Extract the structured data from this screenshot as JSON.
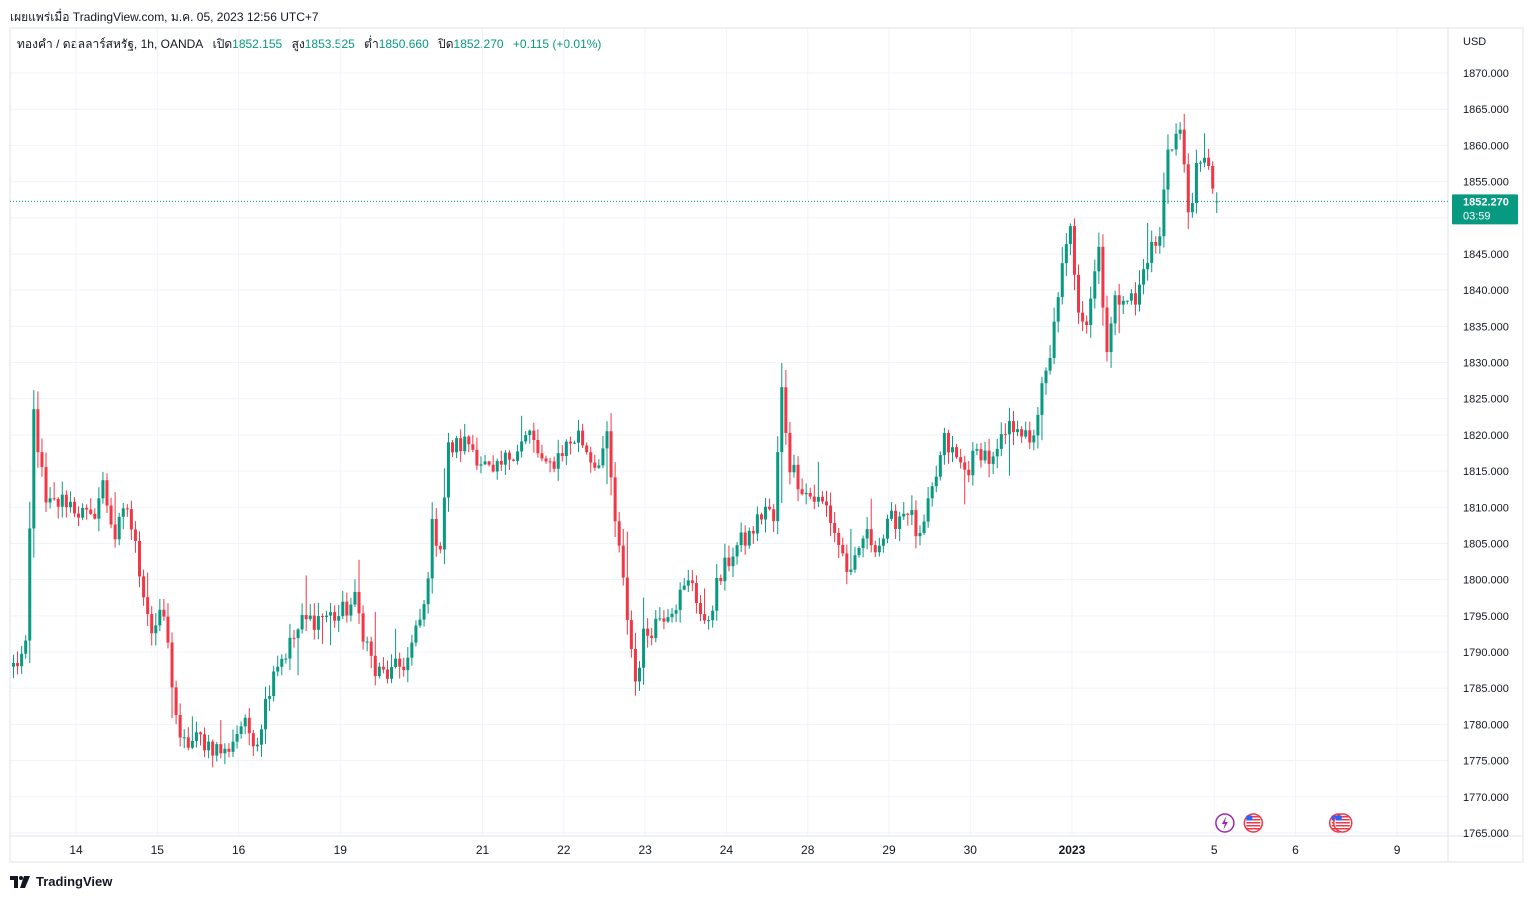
{
  "header": {
    "published": "เผยแพร่เมื่อ TradingView.com, ม.ค. 05, 2023 12:56 UTC+7"
  },
  "legend": {
    "symbol": "ทองคำ / ดอลลาร์สหรัฐ, 1h, OANDA",
    "open_label": "เปิด",
    "open": "1852.155",
    "high_label": "สูง",
    "high": "1853.525",
    "low_label": "ต่ำ",
    "low": "1850.660",
    "close_label": "ปิด",
    "close": "1852.270",
    "change": "+0.115 (+0.01%)"
  },
  "price_tag": {
    "price": "1852.270",
    "countdown": "03:59"
  },
  "footer": {
    "brand": "TradingView"
  },
  "colors": {
    "up": "#089981",
    "down": "#f23645",
    "grid": "#f0f3fa",
    "border": "#e0e3eb",
    "accent": "#089981"
  },
  "chart_data": {
    "type": "candlestick",
    "currency_label": "USD",
    "ylim": [
      1763,
      1875
    ],
    "y_ticks": [
      "1765.000",
      "1770.000",
      "1775.000",
      "1780.000",
      "1785.000",
      "1790.000",
      "1795.000",
      "1800.000",
      "1805.000",
      "1810.000",
      "1815.000",
      "1820.000",
      "1825.000",
      "1830.000",
      "1835.000",
      "1840.000",
      "1845.000",
      "1850.000",
      "1855.000",
      "1860.000",
      "1865.000",
      "1870.000"
    ],
    "x_ticks": [
      {
        "label": "14",
        "bar": 8
      },
      {
        "label": "15",
        "bar": 28
      },
      {
        "label": "16",
        "bar": 48
      },
      {
        "label": "19",
        "bar": 73
      },
      {
        "label": "21",
        "bar": 108
      },
      {
        "label": "22",
        "bar": 128
      },
      {
        "label": "23",
        "bar": 148
      },
      {
        "label": "24",
        "bar": 168
      },
      {
        "label": "28",
        "bar": 188
      },
      {
        "label": "29",
        "bar": 208
      },
      {
        "label": "30",
        "bar": 228
      },
      {
        "label": "2023",
        "bar": 253,
        "bold": true
      },
      {
        "label": "5",
        "bar": 288
      },
      {
        "label": "6",
        "bar": 308
      },
      {
        "label": "9",
        "bar": 333
      }
    ],
    "events": [
      {
        "icon": "lightning-event-icon",
        "bar": 298
      },
      {
        "icon": "us-flag-event-icon",
        "bar": 305
      },
      {
        "icon": "us-flag-event-icon",
        "bar": 326
      },
      {
        "icon": "us-flag-event-icon",
        "bar": 327
      }
    ],
    "anchors": [
      [
        0,
        1788
      ],
      [
        3,
        1790
      ],
      [
        5,
        1823
      ],
      [
        8,
        1810
      ],
      [
        13,
        1811
      ],
      [
        19,
        1808
      ],
      [
        22,
        1813
      ],
      [
        25,
        1806
      ],
      [
        28,
        1810
      ],
      [
        34,
        1793
      ],
      [
        37,
        1795
      ],
      [
        41,
        1777
      ],
      [
        46,
        1778
      ],
      [
        52,
        1776
      ],
      [
        56,
        1780
      ],
      [
        60,
        1778
      ],
      [
        64,
        1788
      ],
      [
        67,
        1790
      ],
      [
        71,
        1794
      ],
      [
        76,
        1795
      ],
      [
        80,
        1795
      ],
      [
        84,
        1797
      ],
      [
        89,
        1787
      ],
      [
        93,
        1787
      ],
      [
        97,
        1789
      ],
      [
        101,
        1796
      ],
      [
        103,
        1807
      ],
      [
        105,
        1805
      ],
      [
        107,
        1818
      ],
      [
        112,
        1819
      ],
      [
        118,
        1814
      ],
      [
        123,
        1818
      ],
      [
        127,
        1820
      ],
      [
        131,
        1815
      ],
      [
        135,
        1818
      ],
      [
        139,
        1820
      ],
      [
        143,
        1816
      ],
      [
        146,
        1819
      ],
      [
        148,
        1808
      ],
      [
        151,
        1795
      ],
      [
        153,
        1786
      ],
      [
        155,
        1792
      ],
      [
        159,
        1795
      ],
      [
        163,
        1797
      ],
      [
        167,
        1800
      ],
      [
        170,
        1793
      ],
      [
        173,
        1799
      ],
      [
        177,
        1804
      ],
      [
        181,
        1806
      ],
      [
        185,
        1810
      ],
      [
        187,
        1808
      ],
      [
        189,
        1826
      ],
      [
        191,
        1816
      ],
      [
        195,
        1812
      ],
      [
        200,
        1810
      ],
      [
        203,
        1805
      ],
      [
        206,
        1800
      ],
      [
        209,
        1806
      ],
      [
        213,
        1805
      ],
      [
        216,
        1808
      ],
      [
        220,
        1810
      ],
      [
        223,
        1805
      ],
      [
        226,
        1812
      ],
      [
        229,
        1819
      ],
      [
        234,
        1815
      ],
      [
        238,
        1818
      ],
      [
        241,
        1816
      ],
      [
        244,
        1820
      ],
      [
        247,
        1822
      ],
      [
        250,
        1818
      ],
      [
        253,
        1826
      ],
      [
        255,
        1830
      ],
      [
        257,
        1840
      ],
      [
        260,
        1848
      ],
      [
        262,
        1838
      ],
      [
        264,
        1836
      ],
      [
        267,
        1846
      ],
      [
        269,
        1832
      ],
      [
        271,
        1838
      ],
      [
        273,
        1840
      ],
      [
        276,
        1838
      ],
      [
        279,
        1845
      ],
      [
        282,
        1847
      ],
      [
        284,
        1860
      ],
      [
        287,
        1862
      ],
      [
        289,
        1851
      ],
      [
        291,
        1856
      ],
      [
        294,
        1858
      ],
      [
        296,
        1852
      ]
    ],
    "last_bar": {
      "open": 1852.155,
      "high": 1853.525,
      "low": 1850.66,
      "close": 1852.27
    }
  }
}
